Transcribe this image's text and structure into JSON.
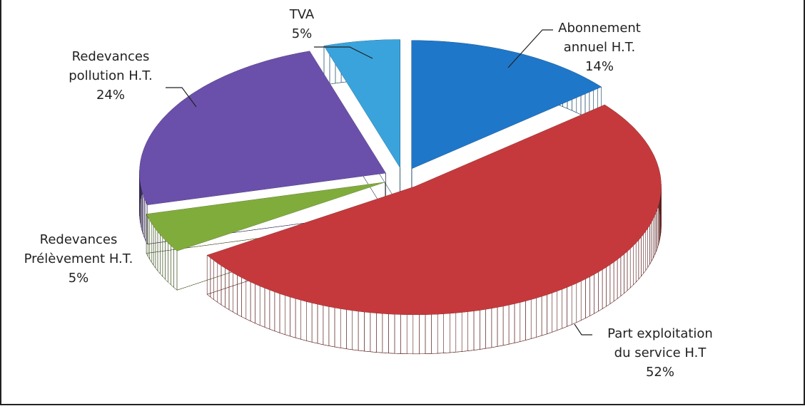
{
  "chart_data": {
    "type": "pie3d",
    "categories": [
      "Abonnement annuel H.T.",
      "Part exploitation du service H.T",
      "Redevances Prélèvement H.T.",
      "Redevances pollution H.T.",
      "TVA"
    ],
    "values": [
      14,
      52,
      5,
      24,
      5
    ],
    "value_labels": [
      "14%",
      "52%",
      "5%",
      "24%",
      "5%"
    ],
    "colors": [
      "#1f77c9",
      "#c5393c",
      "#80ac3c",
      "#6a50aa",
      "#3aa3dc"
    ]
  }
}
